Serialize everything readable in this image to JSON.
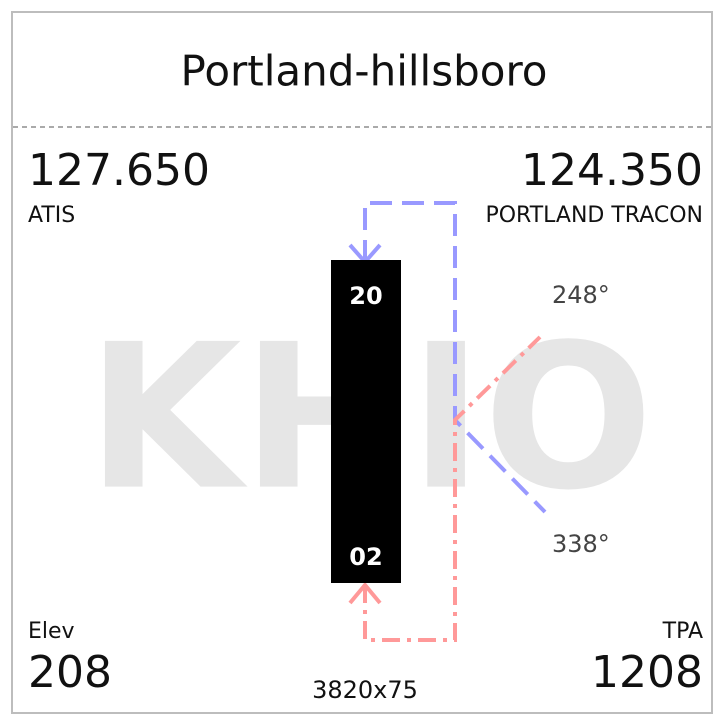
{
  "header": {
    "title": "Portland-hillsboro"
  },
  "watermark": "KHIO",
  "atis": {
    "frequency": "127.650",
    "label": "ATIS"
  },
  "approach": {
    "frequency": "124.350",
    "label": "PORTLAND TRACON"
  },
  "elevation": {
    "label": "Elev",
    "value": "208"
  },
  "pattern_altitude": {
    "label": "TPA",
    "value": "1208"
  },
  "runway": {
    "end_north": "20",
    "end_south": "02",
    "dimensions": "3820x75"
  },
  "headings": {
    "upper": "248°",
    "lower": "338°"
  }
}
